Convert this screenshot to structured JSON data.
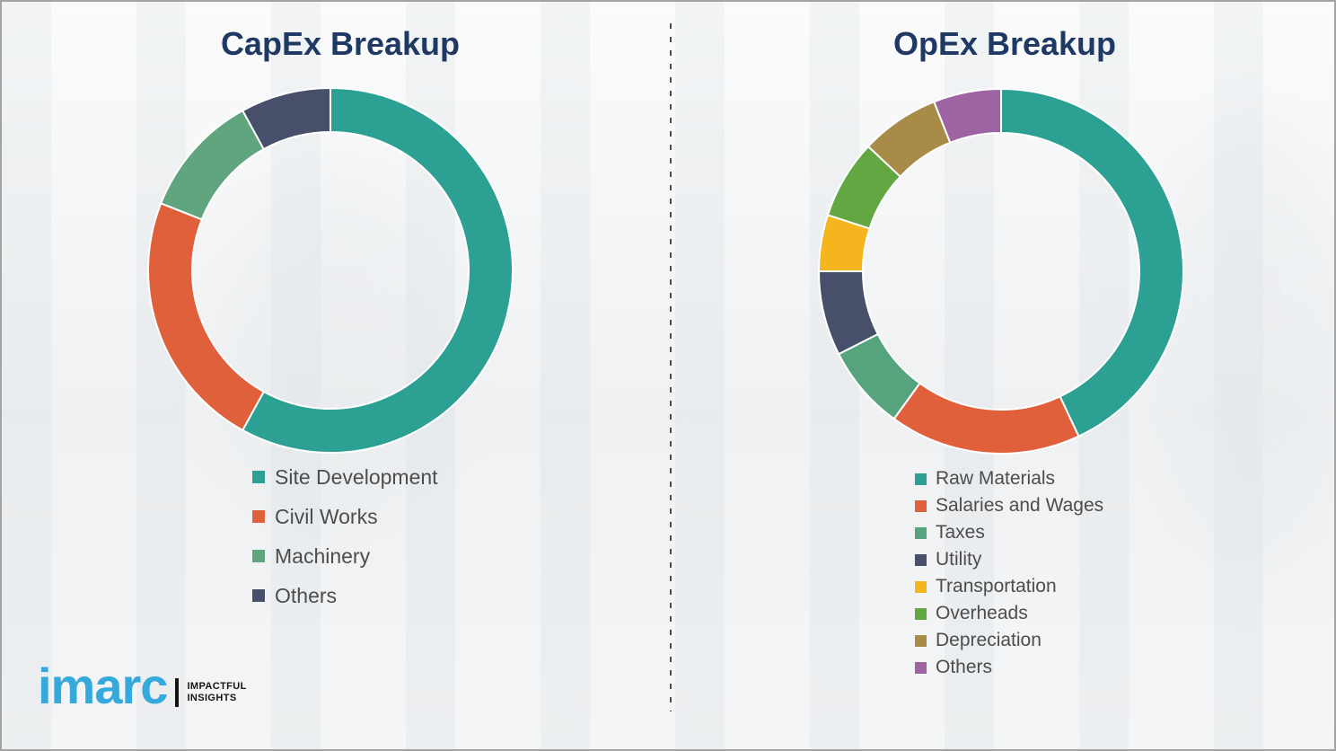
{
  "titles": {
    "capex": "CapEx Breakup",
    "opex": "OpEx Breakup"
  },
  "colors": {
    "title": "#1F3864",
    "legend_text": "#4d4d4d",
    "divider": "#4d4d4d",
    "slice_gap_stroke": "#ffffff"
  },
  "logo": {
    "brand": "imarc",
    "tagline_line1": "IMPACTFUL",
    "tagline_line2": "INSIGHTS",
    "brand_color": "#35A8DC",
    "tagline_color": "#141414"
  },
  "chart_data": [
    {
      "type": "pie",
      "subtype": "donut",
      "title": "CapEx Breakup",
      "title_color": "#1F3864",
      "legend_position": "below-left",
      "unit": "percent-of-total",
      "start_angle_deg": 0,
      "direction": "clockwise",
      "segments": [
        {
          "label": "Site Development",
          "value": 58,
          "color": "#2BA093"
        },
        {
          "label": "Civil Works",
          "value": 23,
          "color": "#E0603C"
        },
        {
          "label": "Machinery",
          "value": 11,
          "color": "#61A57F"
        },
        {
          "label": "Others",
          "value": 8,
          "color": "#474F6B"
        }
      ]
    },
    {
      "type": "pie",
      "subtype": "donut",
      "title": "OpEx Breakup",
      "title_color": "#1F3864",
      "legend_position": "below-left",
      "unit": "percent-of-total",
      "start_angle_deg": 0,
      "direction": "clockwise",
      "segments": [
        {
          "label": "Raw Materials",
          "value": 43,
          "color": "#2BA093"
        },
        {
          "label": "Salaries and Wages",
          "value": 17,
          "color": "#E0603C"
        },
        {
          "label": "Taxes",
          "value": 7.5,
          "color": "#55A47D"
        },
        {
          "label": "Utility",
          "value": 7.5,
          "color": "#474F6B"
        },
        {
          "label": "Transportation",
          "value": 5,
          "color": "#F5B51F"
        },
        {
          "label": "Overheads",
          "value": 7,
          "color": "#63A742"
        },
        {
          "label": "Depreciation",
          "value": 7,
          "color": "#A78B46"
        },
        {
          "label": "Others",
          "value": 6,
          "color": "#9D63A2"
        }
      ]
    }
  ]
}
